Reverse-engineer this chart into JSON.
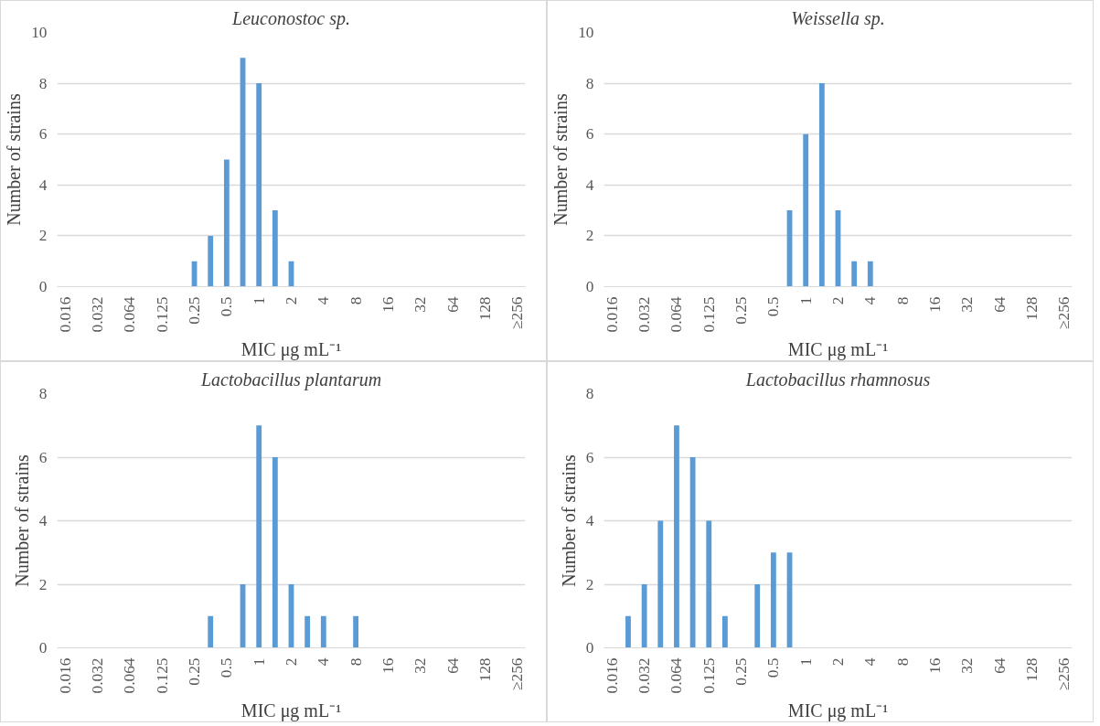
{
  "chart_data": [
    {
      "type": "bar",
      "title": "Leuconostoc sp.",
      "xlabel": "MIC μg mL⁻¹",
      "ylabel": "Number of strains",
      "categories": [
        "0.016",
        null,
        "0.032",
        null,
        "0.064",
        null,
        "0.125",
        null,
        "0.25",
        null,
        "0.5",
        null,
        "1",
        null,
        "2",
        null,
        "4",
        null,
        "8",
        null,
        "16",
        null,
        "32",
        null,
        "64",
        null,
        "128",
        null,
        "≥256"
      ],
      "values": [
        0,
        0,
        0,
        0,
        0,
        0,
        0,
        0,
        1,
        2,
        5,
        9,
        8,
        3,
        1,
        0,
        0,
        0,
        0,
        0,
        0,
        0,
        0,
        0,
        0,
        0,
        0,
        0,
        0
      ],
      "color": "#5b9bd5",
      "ylim": [
        0,
        10
      ],
      "yticks": [
        0,
        2,
        4,
        6,
        8,
        10
      ],
      "grid": "y"
    },
    {
      "type": "bar",
      "title": "Weissella sp.",
      "xlabel": "MIC μg mL⁻¹",
      "ylabel": "Number of strains",
      "categories": [
        "0.016",
        null,
        "0.032",
        null,
        "0.064",
        null,
        "0.125",
        null,
        "0.25",
        null,
        "0.5",
        null,
        "1",
        null,
        "2",
        null,
        "4",
        null,
        "8",
        null,
        "16",
        null,
        "32",
        null,
        "64",
        null,
        "128",
        null,
        "≥256"
      ],
      "values": [
        0,
        0,
        0,
        0,
        0,
        0,
        0,
        0,
        0,
        0,
        0,
        3,
        6,
        8,
        3,
        1,
        1,
        0,
        0,
        0,
        0,
        0,
        0,
        0,
        0,
        0,
        0,
        0,
        0
      ],
      "color": "#5b9bd5",
      "ylim": [
        0,
        10
      ],
      "yticks": [
        0,
        2,
        4,
        6,
        8,
        10
      ],
      "grid": "y"
    },
    {
      "type": "bar",
      "title": "Lactobacillus plantarum",
      "xlabel": "MIC μg mL⁻¹",
      "ylabel": "Number of strains",
      "categories": [
        "0.016",
        null,
        "0.032",
        null,
        "0.064",
        null,
        "0.125",
        null,
        "0.25",
        null,
        "0.5",
        null,
        "1",
        null,
        "2",
        null,
        "4",
        null,
        "8",
        null,
        "16",
        null,
        "32",
        null,
        "64",
        null,
        "128",
        null,
        "≥256"
      ],
      "values": [
        0,
        0,
        0,
        0,
        0,
        0,
        0,
        0,
        0,
        1,
        0,
        2,
        7,
        6,
        2,
        1,
        1,
        0,
        1,
        0,
        0,
        0,
        0,
        0,
        0,
        0,
        0,
        0,
        0
      ],
      "color": "#5b9bd5",
      "ylim": [
        0,
        8
      ],
      "yticks": [
        0,
        2,
        4,
        6,
        8
      ],
      "grid": "y"
    },
    {
      "type": "bar",
      "title": "Lactobacillus rhamnosus",
      "xlabel": "MIC μg mL⁻¹",
      "ylabel": "Number of strains",
      "categories": [
        "0.016",
        null,
        "0.032",
        null,
        "0.064",
        null,
        "0.125",
        null,
        "0.25",
        null,
        "0.5",
        null,
        "1",
        null,
        "2",
        null,
        "4",
        null,
        "8",
        null,
        "16",
        null,
        "32",
        null,
        "64",
        null,
        "128",
        null,
        "≥256"
      ],
      "values": [
        0,
        1,
        2,
        4,
        7,
        6,
        4,
        1,
        0,
        2,
        3,
        3,
        0,
        0,
        0,
        0,
        0,
        0,
        0,
        0,
        0,
        0,
        0,
        0,
        0,
        0,
        0,
        0,
        0
      ],
      "color": "#5b9bd5",
      "ylim": [
        0,
        8
      ],
      "yticks": [
        0,
        2,
        4,
        6,
        8
      ],
      "grid": "y"
    }
  ]
}
